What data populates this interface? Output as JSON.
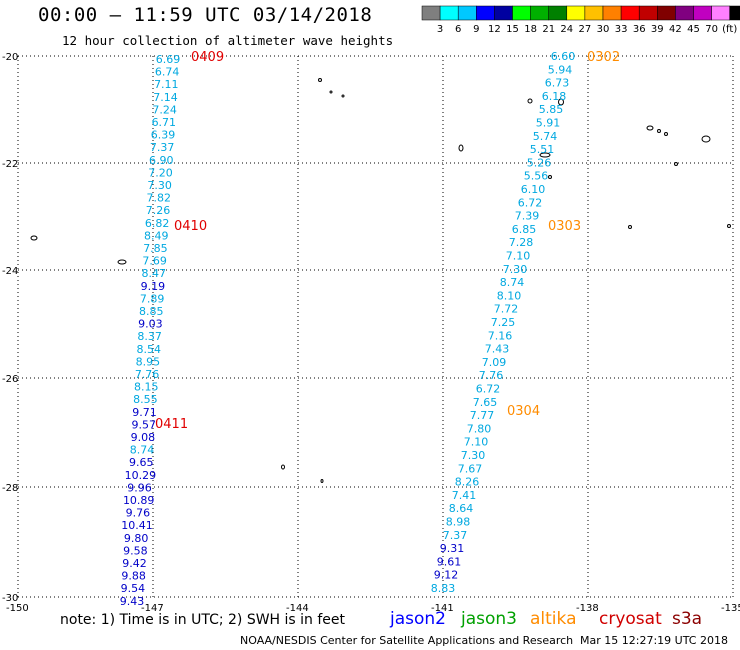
{
  "title": "00:00 – 11:59 UTC 03/14/2018",
  "subtitle": "12 hour collection of altimeter wave heights",
  "color_scale": {
    "colors": [
      "#7f7f7f",
      "#00ffff",
      "#00c8ff",
      "#0000ff",
      "#0000a0",
      "#00ff00",
      "#00b000",
      "#008000",
      "#ffff00",
      "#ffc000",
      "#ff8000",
      "#ff0000",
      "#c00000",
      "#800000",
      "#800080",
      "#c000c0",
      "#ff80ff",
      "#000000"
    ],
    "labels": [
      "3",
      "6",
      "9",
      "12",
      "15",
      "18",
      "21",
      "24",
      "27",
      "30",
      "33",
      "36",
      "39",
      "42",
      "45",
      "70",
      "(ft)"
    ]
  },
  "axes": {
    "lon_labels": [
      "-150",
      "-147",
      "-144",
      "-141",
      "-138",
      "-135"
    ],
    "lat_labels": [
      "-20",
      "-22",
      "-24",
      "-26",
      "-28",
      "-30"
    ]
  },
  "tracks": [
    {
      "side": "left",
      "values": [
        "6.69",
        "6.74",
        "7.11",
        "7.14",
        "7.24",
        "6.71",
        "6.39",
        "7.37",
        "6.90",
        "7.20",
        "7.30",
        "7.82",
        "7.26",
        "6.82",
        "8.49",
        "7.85",
        "7.69",
        "8.47",
        "9.19",
        "7.89",
        "8.85",
        "9.03",
        "8.37",
        "8.54",
        "8.95",
        "7.76",
        "8.15",
        "8.55",
        "9.71",
        "9.57",
        "9.08",
        "8.74",
        "9.65",
        "10.29",
        "9.96",
        "10.89",
        "9.76",
        "10.41",
        "9.80",
        "9.58",
        "9.42",
        "9.88",
        "9.54",
        "9.43"
      ]
    },
    {
      "side": "right",
      "values": [
        "6.60",
        "5.94",
        "6.73",
        "6.18",
        "5.85",
        "5.91",
        "5.74",
        "5.51",
        "5.26",
        "5.56",
        "6.10",
        "6.72",
        "7.39",
        "6.85",
        "7.28",
        "7.10",
        "7.30",
        "8.74",
        "8.10",
        "7.72",
        "7.25",
        "7.16",
        "7.43",
        "7.09",
        "7.76",
        "6.72",
        "7.65",
        "7.77",
        "7.80",
        "7.10",
        "7.30",
        "7.67",
        "8.26",
        "7.41",
        "8.64",
        "8.98",
        "7.37",
        "9.31",
        "9.61",
        "9.12",
        "8.83"
      ]
    }
  ],
  "time_labels": [
    "0409",
    "0410",
    "0411",
    "0302",
    "0303",
    "0304"
  ],
  "note": "note: 1) Time is in UTC; 2) SWH is in feet",
  "satellites": [
    {
      "name": "jason2",
      "color": "#0000ff"
    },
    {
      "name": "jason3",
      "color": "#00a000"
    },
    {
      "name": "altika",
      "color": "#ff8c00"
    },
    {
      "name": "cryosat",
      "color": "#d00000"
    },
    {
      "name": "s3a",
      "color": "#8b0000"
    }
  ],
  "credit": "NOAA/NESDIS Center for Satellite Applications and Research",
  "timestamp": "Mar 15 12:27:19 UTC 2018"
}
